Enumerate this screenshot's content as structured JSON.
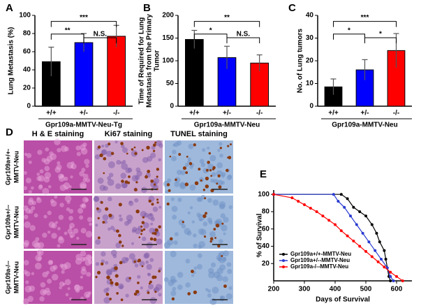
{
  "panel_labels": [
    "A",
    "B",
    "C",
    "D",
    "E"
  ],
  "chart_data": [
    {
      "type": "bar",
      "ylabel": [
        "Lung Metastasis (%)"
      ],
      "xlabel": "Gpr109a-MMTV-Neu-Tg",
      "categories": [
        "+/+",
        "+/-",
        "-/-"
      ],
      "values": [
        49,
        70,
        77
      ],
      "errors": [
        16,
        10,
        12
      ],
      "colors": [
        "#000000",
        "#0000ff",
        "#ff0000"
      ],
      "ylim": [
        0,
        100
      ],
      "yticks": [
        0,
        20,
        40,
        60,
        80,
        100
      ],
      "annotations": [
        {
          "text": "***",
          "color": "#ff0000"
        },
        {
          "text": "**",
          "color": "#0000ff"
        },
        {
          "text": "N.S.",
          "color": "#000000"
        }
      ]
    },
    {
      "type": "bar",
      "ylabel": [
        "Time of  Required for Lung",
        "Metastasis from the Primary",
        "Tumor"
      ],
      "xlabel": "Gpr109a-MMTV-Neu",
      "categories": [
        "+/+",
        "+/-",
        "-/-"
      ],
      "values": [
        147,
        107,
        95
      ],
      "errors": [
        20,
        25,
        18
      ],
      "colors": [
        "#000000",
        "#0000ff",
        "#ff0000"
      ],
      "ylim": [
        0,
        200
      ],
      "yticks": [
        0,
        50,
        100,
        150,
        200
      ],
      "annotations": [
        {
          "text": "**",
          "color": "#ff0000"
        },
        {
          "text": "*",
          "color": "#0000ff"
        },
        {
          "text": "N.S.",
          "color": "#000000"
        }
      ]
    },
    {
      "type": "bar",
      "ylabel": [
        "No. of Lung tumors"
      ],
      "xlabel": "Gpr109a-MMTV-Neu",
      "categories": [
        "+/+",
        "+/-",
        "-/-"
      ],
      "values": [
        8.5,
        16,
        24.5
      ],
      "errors": [
        3.5,
        4.5,
        7.5
      ],
      "colors": [
        "#000000",
        "#0000ff",
        "#ff0000"
      ],
      "ylim": [
        0,
        40
      ],
      "yticks": [
        0,
        10,
        20,
        30,
        40
      ],
      "annotations": [
        {
          "text": "***",
          "color": "#ff0000"
        },
        {
          "text": "*",
          "color": "#0000ff"
        },
        {
          "text": "*",
          "color": "#000000"
        }
      ]
    },
    {
      "type": "line",
      "ylabel": [
        "% of Survival"
      ],
      "xlabel": "Days of Survival",
      "xlim": [
        200,
        650
      ],
      "xticks": [
        200,
        300,
        400,
        500,
        600
      ],
      "ylim": [
        0,
        105
      ],
      "yticks": [
        20,
        40,
        60,
        80,
        100
      ],
      "legend": "lower left",
      "series": [
        {
          "name": "Gpr109a+/+-MMTV-Neu",
          "color": "#000000",
          "x": [
            200,
            420,
            440,
            460,
            480,
            500,
            520,
            535,
            545,
            560,
            565,
            575,
            580
          ],
          "values": [
            100,
            100,
            95,
            85,
            80,
            75,
            65,
            55,
            45,
            35,
            25,
            5,
            0
          ]
        },
        {
          "name": "Gpr109a+/--MMTV-Neu",
          "color": "#2a3bd0",
          "x": [
            200,
            395,
            410,
            430,
            450,
            470,
            490,
            510,
            530,
            550,
            570,
            580,
            590
          ],
          "values": [
            100,
            100,
            92,
            85,
            75,
            65,
            55,
            45,
            35,
            25,
            15,
            5,
            0
          ]
        },
        {
          "name": "Gpr109a-/--MMTV-Neu",
          "color": "#ff0000",
          "x": [
            200,
            260,
            280,
            300,
            320,
            340,
            360,
            380,
            400,
            420,
            440,
            460,
            480,
            500,
            520,
            540,
            560,
            580,
            600,
            620
          ],
          "values": [
            100,
            96,
            92,
            88,
            84,
            80,
            75,
            70,
            65,
            58,
            52,
            46,
            40,
            34,
            28,
            22,
            16,
            10,
            5,
            0
          ]
        }
      ]
    }
  ],
  "histology": {
    "columns": [
      "H & E staining",
      "Ki67 staining",
      "TUNEL staining"
    ],
    "rows": [
      [
        "Gpr109a+/+-",
        "MMTV-Neu"
      ],
      [
        "Gpr109a+/--",
        "MMTV-Neu"
      ],
      [
        "Gpr109a-/--",
        "MMTV-Neu"
      ]
    ]
  }
}
